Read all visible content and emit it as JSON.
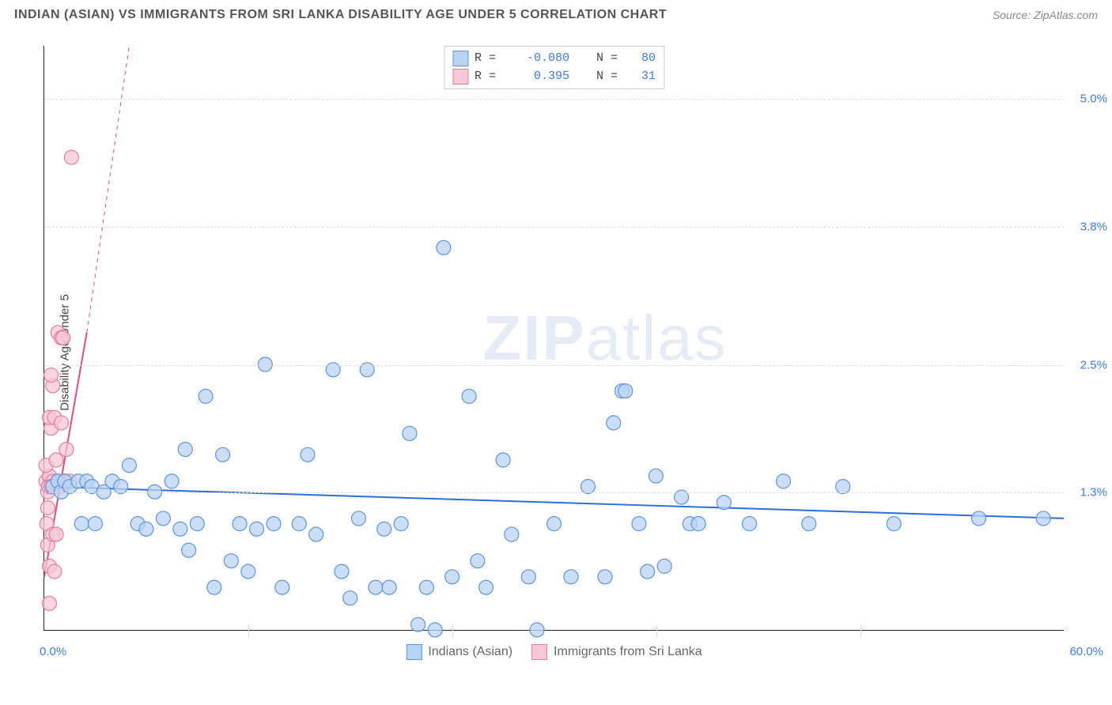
{
  "header": {
    "title": "INDIAN (ASIAN) VS IMMIGRANTS FROM SRI LANKA DISABILITY AGE UNDER 5 CORRELATION CHART",
    "source_prefix": "Source: ",
    "source_name": "ZipAtlas.com"
  },
  "watermark": {
    "zip": "ZIP",
    "atlas": "atlas"
  },
  "chart": {
    "type": "scatter",
    "y_axis_label": "Disability Age Under 5",
    "xlim": [
      0.0,
      60.0
    ],
    "ylim": [
      0.0,
      5.5
    ],
    "x_ticks": [
      0.0,
      12.0,
      24.0,
      36.0,
      48.0,
      60.0
    ],
    "x_tick_labels_shown": {
      "0": "0.0%",
      "60": "60.0%"
    },
    "y_ticks": [
      1.3,
      2.5,
      3.8,
      5.0
    ],
    "y_tick_labels": [
      "1.3%",
      "2.5%",
      "3.8%",
      "5.0%"
    ],
    "grid_color": "#dddddd",
    "axis_color": "#222222",
    "plot_bg": "#ffffff",
    "label_color": "#3a7de0",
    "marker_radius": 9,
    "marker_stroke_width": 1.2,
    "trend_line_width": 2,
    "series": {
      "blue": {
        "label": "Indians (Asian)",
        "fill": "#b9d3f2",
        "stroke": "#5a95e0",
        "line_color": "#2a6fd6",
        "R": "-0.080",
        "N": "80",
        "trend": {
          "x1": 0.0,
          "y1": 1.35,
          "x2": 60.0,
          "y2": 1.05
        },
        "points": [
          [
            0.5,
            1.35
          ],
          [
            0.8,
            1.4
          ],
          [
            1.0,
            1.3
          ],
          [
            1.2,
            1.4
          ],
          [
            1.5,
            1.35
          ],
          [
            2.0,
            1.4
          ],
          [
            2.2,
            1.0
          ],
          [
            2.5,
            1.4
          ],
          [
            2.8,
            1.35
          ],
          [
            3.0,
            1.0
          ],
          [
            3.5,
            1.3
          ],
          [
            4.0,
            1.4
          ],
          [
            4.5,
            1.35
          ],
          [
            5.0,
            1.55
          ],
          [
            5.5,
            1.0
          ],
          [
            6.0,
            0.95
          ],
          [
            6.5,
            1.3
          ],
          [
            7.0,
            1.05
          ],
          [
            7.5,
            1.4
          ],
          [
            8.0,
            0.95
          ],
          [
            8.3,
            1.7
          ],
          [
            8.5,
            0.75
          ],
          [
            9.0,
            1.0
          ],
          [
            9.5,
            2.2
          ],
          [
            10.0,
            0.4
          ],
          [
            10.5,
            1.65
          ],
          [
            11.0,
            0.65
          ],
          [
            11.5,
            1.0
          ],
          [
            12.0,
            0.55
          ],
          [
            12.5,
            0.95
          ],
          [
            13.0,
            2.5
          ],
          [
            13.5,
            1.0
          ],
          [
            14.0,
            0.4
          ],
          [
            15.0,
            1.0
          ],
          [
            15.5,
            1.65
          ],
          [
            16.0,
            0.9
          ],
          [
            17.0,
            2.45
          ],
          [
            17.5,
            0.55
          ],
          [
            18.0,
            0.3
          ],
          [
            18.5,
            1.05
          ],
          [
            19.0,
            2.45
          ],
          [
            19.5,
            0.4
          ],
          [
            20.0,
            0.95
          ],
          [
            20.3,
            0.4
          ],
          [
            21.0,
            1.0
          ],
          [
            21.5,
            1.85
          ],
          [
            22.0,
            0.05
          ],
          [
            22.5,
            0.4
          ],
          [
            23.0,
            0.0
          ],
          [
            23.5,
            3.6
          ],
          [
            24.0,
            0.5
          ],
          [
            25.0,
            2.2
          ],
          [
            25.5,
            0.65
          ],
          [
            26.0,
            0.4
          ],
          [
            27.0,
            1.6
          ],
          [
            27.5,
            0.9
          ],
          [
            28.5,
            0.5
          ],
          [
            29.0,
            0.0
          ],
          [
            30.0,
            1.0
          ],
          [
            31.0,
            0.5
          ],
          [
            32.0,
            1.35
          ],
          [
            33.0,
            0.5
          ],
          [
            33.5,
            1.95
          ],
          [
            34.0,
            2.25
          ],
          [
            34.2,
            2.25
          ],
          [
            35.0,
            1.0
          ],
          [
            35.5,
            0.55
          ],
          [
            36.0,
            1.45
          ],
          [
            36.5,
            0.6
          ],
          [
            37.5,
            1.25
          ],
          [
            38.0,
            1.0
          ],
          [
            38.5,
            1.0
          ],
          [
            40.0,
            1.2
          ],
          [
            41.5,
            1.0
          ],
          [
            43.5,
            1.4
          ],
          [
            45.0,
            1.0
          ],
          [
            47.0,
            1.35
          ],
          [
            55.0,
            1.05
          ],
          [
            58.8,
            1.05
          ],
          [
            50.0,
            1.0
          ]
        ]
      },
      "pink": {
        "label": "Immigrants from Sri Lanka",
        "fill": "#f6c7d6",
        "stroke": "#e77aa0",
        "line_color": "#e24a85",
        "R": "0.395",
        "N": "31",
        "trend_solid": {
          "x1": 0.0,
          "y1": 0.5,
          "x2": 2.5,
          "y2": 2.8
        },
        "trend_dashed": {
          "x1": 2.5,
          "y1": 2.8,
          "x2": 5.0,
          "y2": 5.5
        },
        "points": [
          [
            0.1,
            1.4
          ],
          [
            0.2,
            1.3
          ],
          [
            0.15,
            1.0
          ],
          [
            0.3,
            1.45
          ],
          [
            0.25,
            1.35
          ],
          [
            0.2,
            0.8
          ],
          [
            0.3,
            0.6
          ],
          [
            0.1,
            1.55
          ],
          [
            0.4,
            1.9
          ],
          [
            0.5,
            1.4
          ],
          [
            0.4,
            1.35
          ],
          [
            0.3,
            2.0
          ],
          [
            0.6,
            2.0
          ],
          [
            0.5,
            2.3
          ],
          [
            0.4,
            2.4
          ],
          [
            0.7,
            1.6
          ],
          [
            0.8,
            1.4
          ],
          [
            0.9,
            1.35
          ],
          [
            1.0,
            1.95
          ],
          [
            1.2,
            1.4
          ],
          [
            0.8,
            2.8
          ],
          [
            1.0,
            2.75
          ],
          [
            1.1,
            2.75
          ],
          [
            1.3,
            1.7
          ],
          [
            1.5,
            1.4
          ],
          [
            1.6,
            4.45
          ],
          [
            0.3,
            0.25
          ],
          [
            0.5,
            0.9
          ],
          [
            0.6,
            0.55
          ],
          [
            0.7,
            0.9
          ],
          [
            0.2,
            1.15
          ]
        ]
      }
    }
  },
  "legend_top": {
    "R_label": "R =",
    "N_label": "N ="
  }
}
